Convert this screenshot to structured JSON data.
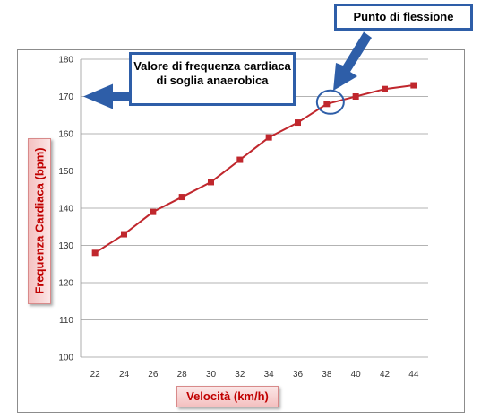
{
  "chart_data": {
    "type": "line",
    "x": [
      22,
      24,
      26,
      28,
      30,
      32,
      34,
      36,
      38,
      40,
      42,
      44
    ],
    "series": [
      {
        "values": [
          128,
          133,
          139,
          143,
          147,
          153,
          159,
          163,
          168,
          170,
          172,
          173
        ]
      }
    ],
    "xlabel": "Velocità (km/h)",
    "ylabel": "Frequenza Cardiaca (bpm)",
    "ylim": [
      100,
      180
    ],
    "yticks": [
      100,
      110,
      120,
      130,
      140,
      150,
      160,
      170,
      180
    ],
    "grid": true,
    "line_color": "#c0272d",
    "accent_color": "#2e5ea8",
    "annotations": {
      "threshold": "Valore di frequenza cardiaca di soglia anaerobica",
      "flex_point": "Punto di flessione",
      "flex_point_x": 38
    }
  }
}
